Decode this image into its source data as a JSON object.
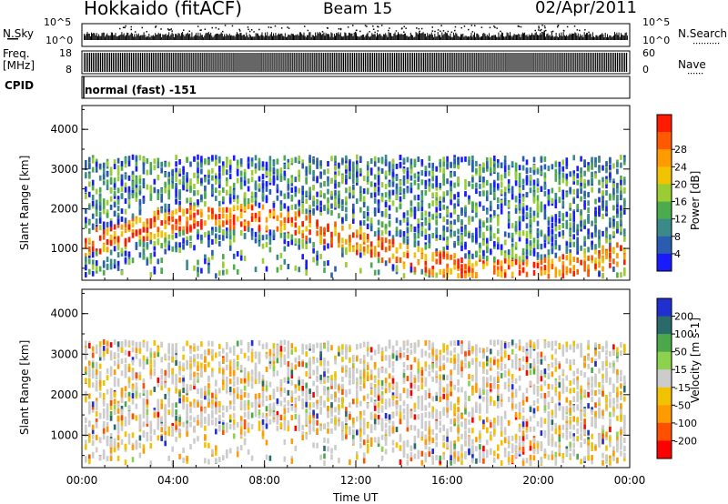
{
  "header": {
    "station": "Hokkaido (fitACF)",
    "beam": "Beam 15",
    "date": "02/Apr/2011"
  },
  "noise_panel": {
    "left_label": "N.Sky",
    "right_label": "N.Search",
    "ticks_left": [
      "10^5",
      "10^0"
    ],
    "ticks_right": [
      "10^5",
      "10^0"
    ]
  },
  "freq_panel": {
    "left_label_1": "Freq.",
    "left_label_2": "[MHz]",
    "right_label": "Nave",
    "ticks_left": [
      "18",
      "8"
    ],
    "ticks_right": [
      "60",
      "0"
    ]
  },
  "cpid_panel": {
    "label": "CPID",
    "text": "normal (fast) -151"
  },
  "chart_data": [
    {
      "type": "heatmap",
      "name": "power",
      "ylabel": "Slant Range [km]",
      "ylim": [
        200,
        4600
      ],
      "yticks": [
        "1000",
        "2000",
        "3000",
        "4000"
      ],
      "colorbar": {
        "label": "Power [dB]",
        "ticks": [
          "4",
          "8",
          "12",
          "16",
          "20",
          "24",
          "28"
        ],
        "colors": [
          "#1a1aff",
          "#2a5cb0",
          "#3a8a8a",
          "#4cab4c",
          "#9acd32",
          "#f2c200",
          "#ff9a00",
          "#ff5a00",
          "#ff1a00"
        ]
      },
      "data_range_km": [
        300,
        3300
      ]
    },
    {
      "type": "heatmap",
      "name": "velocity",
      "ylabel": "Slant Range [km]",
      "ylim": [
        200,
        4600
      ],
      "yticks": [
        "1000",
        "2000",
        "3000",
        "4000"
      ],
      "colorbar": {
        "label": "Velocity [m s-1]",
        "ticks": [
          "200",
          "100",
          "50",
          "15",
          "-15",
          "-50",
          "-100",
          "-200"
        ],
        "colors": [
          "#2030d0",
          "#2a6a6a",
          "#4aa84a",
          "#8cd24c",
          "#cccccc",
          "#f2c200",
          "#ff9a00",
          "#ff5000",
          "#ff0000"
        ]
      },
      "data_range_km": [
        300,
        3300
      ]
    }
  ],
  "x_axis": {
    "label": "Time UT",
    "ticks": [
      "00:00",
      "04:00",
      "08:00",
      "12:00",
      "16:00",
      "20:00",
      "00:00"
    ]
  }
}
